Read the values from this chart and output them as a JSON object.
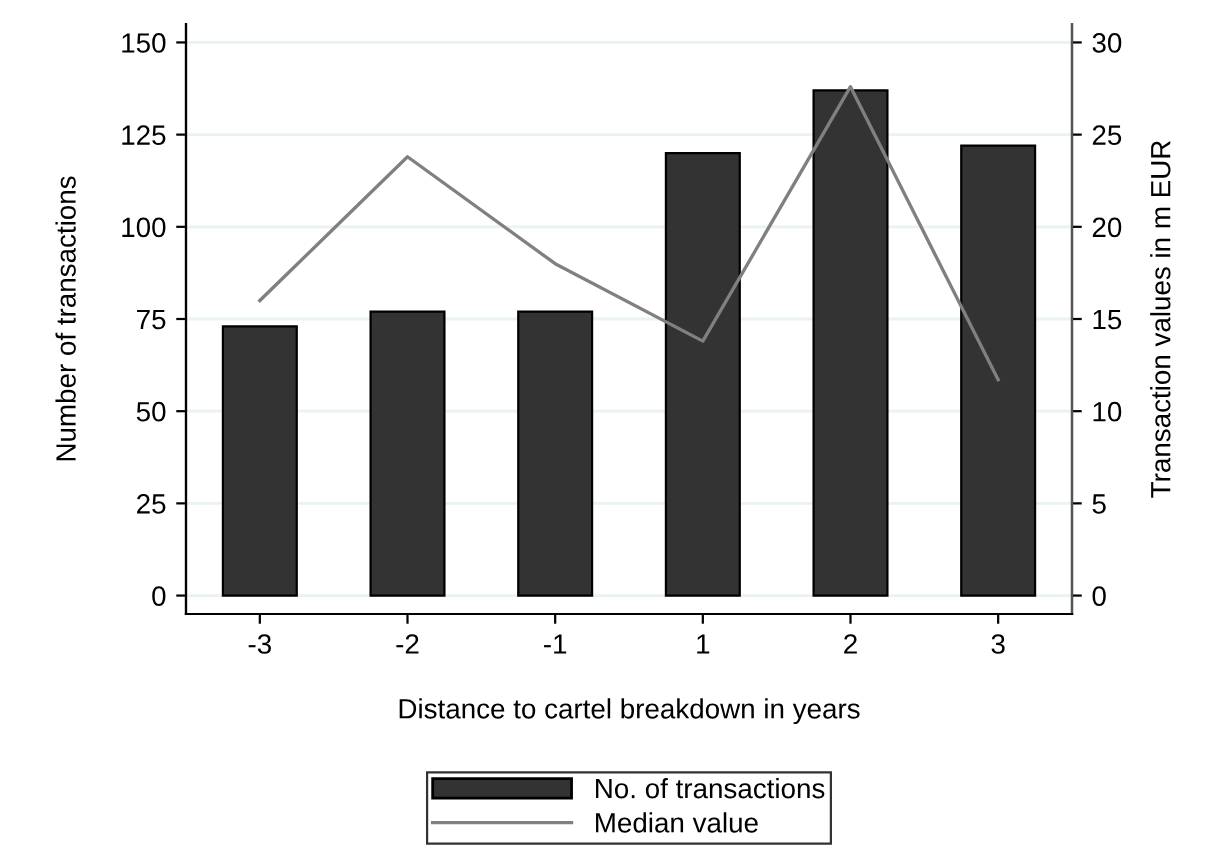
{
  "chart_data": {
    "type": "bar",
    "categories": [
      "-3",
      "-2",
      "-1",
      "1",
      "2",
      "3"
    ],
    "xlabel": "Distance to cartel breakdown in years",
    "ylabel": "Number of transactions",
    "y2label": "Transaction values in m EUR",
    "series": [
      {
        "name": "No. of transactions",
        "color": "#333333",
        "values": [
          73,
          77,
          77,
          120,
          137,
          122
        ]
      },
      {
        "name": "Median value",
        "type": "line",
        "axis": "y2",
        "color": "#808080",
        "values": [
          16.0,
          23.8,
          18.0,
          13.8,
          27.6,
          11.7
        ]
      }
    ],
    "ylim": [
      -5,
      155
    ],
    "yticks": [
      0,
      25,
      50,
      75,
      100,
      125,
      150
    ],
    "y2lim": [
      -1,
      31
    ],
    "y2ticks": [
      0,
      5,
      10,
      15,
      20,
      25,
      30
    ],
    "grid": "y",
    "legend": "bottom",
    "marker": "none",
    "line_style": "solid"
  }
}
